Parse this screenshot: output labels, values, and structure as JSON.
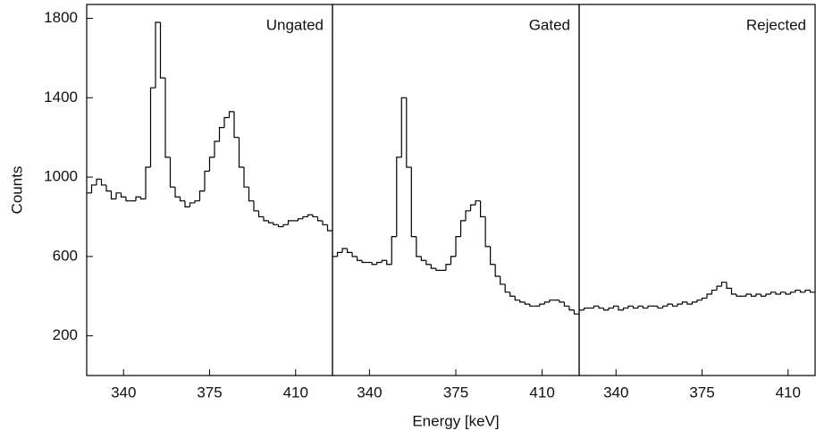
{
  "chart_data": [
    {
      "type": "histogram",
      "title": "Ungated",
      "ylabel": "Counts",
      "bins": [
        325,
        327,
        329,
        331,
        333,
        335,
        337,
        339,
        341,
        343,
        345,
        347,
        349,
        351,
        353,
        355,
        357,
        359,
        361,
        363,
        365,
        367,
        369,
        371,
        373,
        375,
        377,
        379,
        381,
        383,
        385,
        387,
        389,
        391,
        393,
        395,
        397,
        399,
        401,
        403,
        405,
        407,
        409,
        411,
        413,
        415,
        417,
        419,
        421,
        423,
        425
      ],
      "counts": [
        920,
        960,
        990,
        960,
        930,
        890,
        920,
        900,
        880,
        880,
        900,
        890,
        1050,
        1450,
        1780,
        1500,
        1100,
        950,
        900,
        880,
        850,
        870,
        880,
        930,
        1030,
        1100,
        1180,
        1250,
        1300,
        1330,
        1200,
        1050,
        950,
        880,
        830,
        800,
        780,
        770,
        760,
        750,
        760,
        780,
        780,
        790,
        800,
        810,
        800,
        780,
        760,
        730
      ],
      "xlim": [
        325,
        425
      ],
      "xticks": [
        340,
        375,
        410
      ],
      "ylim": [
        0,
        1870
      ],
      "yticks": [
        200,
        600,
        1000,
        1400,
        1800
      ]
    },
    {
      "type": "histogram",
      "title": "Gated",
      "xlabel": "Energy [keV]",
      "bins": [
        325,
        327,
        329,
        331,
        333,
        335,
        337,
        339,
        341,
        343,
        345,
        347,
        349,
        351,
        353,
        355,
        357,
        359,
        361,
        363,
        365,
        367,
        369,
        371,
        373,
        375,
        377,
        379,
        381,
        383,
        385,
        387,
        389,
        391,
        393,
        395,
        397,
        399,
        401,
        403,
        405,
        407,
        409,
        411,
        413,
        415,
        417,
        419,
        421,
        423,
        425
      ],
      "counts": [
        600,
        620,
        640,
        620,
        600,
        580,
        570,
        570,
        560,
        570,
        580,
        560,
        700,
        1100,
        1400,
        1050,
        700,
        600,
        580,
        560,
        540,
        530,
        530,
        560,
        600,
        700,
        780,
        830,
        860,
        880,
        800,
        650,
        560,
        500,
        460,
        420,
        400,
        380,
        370,
        360,
        350,
        350,
        360,
        370,
        380,
        380,
        370,
        350,
        330,
        310
      ],
      "xlim": [
        325,
        425
      ],
      "xticks": [
        340,
        375,
        410
      ],
      "ylim": [
        0,
        1870
      ]
    },
    {
      "type": "histogram",
      "title": "Rejected",
      "bins": [
        325,
        327,
        329,
        331,
        333,
        335,
        337,
        339,
        341,
        343,
        345,
        347,
        349,
        351,
        353,
        355,
        357,
        359,
        361,
        363,
        365,
        367,
        369,
        371,
        373,
        375,
        377,
        379,
        381,
        383,
        385,
        387,
        389,
        391,
        393,
        395,
        397,
        399,
        401,
        403,
        405,
        407,
        409,
        411,
        413,
        415,
        417,
        419,
        421
      ],
      "counts": [
        330,
        340,
        340,
        350,
        340,
        330,
        340,
        350,
        330,
        340,
        350,
        340,
        350,
        340,
        350,
        350,
        340,
        350,
        360,
        350,
        360,
        370,
        360,
        370,
        380,
        390,
        410,
        430,
        450,
        470,
        440,
        410,
        400,
        400,
        410,
        400,
        410,
        400,
        410,
        420,
        410,
        420,
        410,
        420,
        430,
        420,
        430,
        420
      ],
      "xlim": [
        325,
        421
      ],
      "xticks": [
        340,
        375,
        410
      ],
      "ylim": [
        0,
        1870
      ]
    }
  ]
}
